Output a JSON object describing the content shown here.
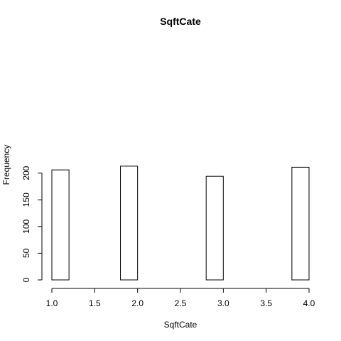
{
  "chart_data": {
    "type": "bar",
    "title": "SqftCate",
    "xlabel": "SqftCate",
    "ylabel": "Frequency",
    "xlim": [
      1.0,
      4.0
    ],
    "ylim": [
      0,
      220
    ],
    "x_ticks": [
      "1.0",
      "1.5",
      "2.0",
      "2.5",
      "3.0",
      "3.5",
      "4.0"
    ],
    "y_ticks": [
      "0",
      "50",
      "100",
      "150",
      "200"
    ],
    "bins": [
      [
        1.0,
        1.2
      ],
      [
        1.2,
        1.4
      ],
      [
        1.4,
        1.6
      ],
      [
        1.6,
        1.8
      ],
      [
        1.8,
        2.0
      ],
      [
        2.0,
        2.2
      ],
      [
        2.2,
        2.4
      ],
      [
        2.4,
        2.6
      ],
      [
        2.6,
        2.8
      ],
      [
        2.8,
        3.0
      ],
      [
        3.0,
        3.2
      ],
      [
        3.2,
        3.4
      ],
      [
        3.4,
        3.6
      ],
      [
        3.6,
        3.8
      ],
      [
        3.8,
        4.0
      ]
    ],
    "values": [
      206,
      0,
      0,
      0,
      213,
      0,
      0,
      0,
      0,
      194,
      0,
      0,
      0,
      0,
      211
    ],
    "grid": false,
    "legend": "none"
  }
}
